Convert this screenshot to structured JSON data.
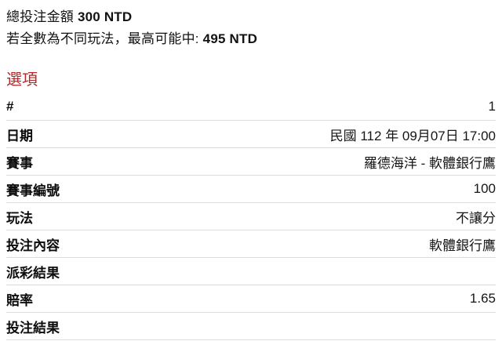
{
  "summary": {
    "total_label": "總投注金額",
    "total_value": "300 NTD",
    "max_win_label": "若全數為不同玩法，最高可能中:",
    "max_win_value": "495 NTD"
  },
  "section": {
    "title": "選項"
  },
  "option_table": {
    "rows": [
      {
        "label": "#",
        "value": "1"
      },
      {
        "label": "日期",
        "value": "民國 112 年 09月07日 17:00"
      },
      {
        "label": "賽事",
        "value": "羅德海洋 - 軟體銀行鷹"
      },
      {
        "label": "賽事編號",
        "value": "100"
      },
      {
        "label": "玩法",
        "value": "不讓分"
      },
      {
        "label": "投注內容",
        "value": "軟體銀行鷹"
      },
      {
        "label": "派彩結果",
        "value": ""
      },
      {
        "label": "賠率",
        "value": "1.65"
      },
      {
        "label": "投注結果",
        "value": ""
      }
    ]
  },
  "colors": {
    "section_title": "#b3282b",
    "divider": "#dcdcdc",
    "bottom_bar": "#e3e3e3",
    "text": "#111111"
  }
}
